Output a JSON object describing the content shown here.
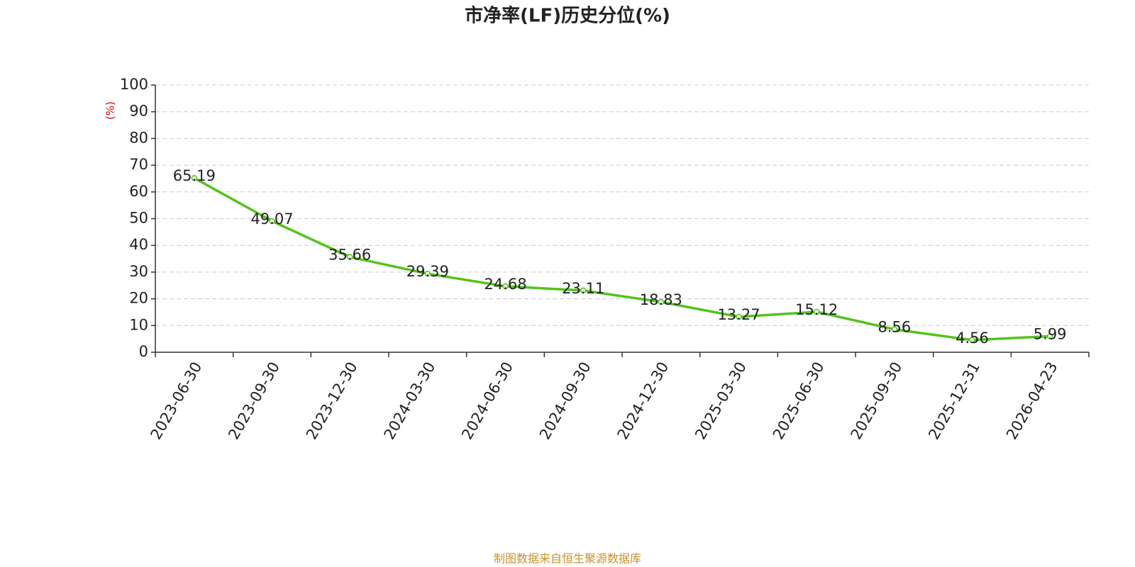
{
  "chart_data": {
    "type": "line",
    "title": "市净率(LF)历史分位(%)",
    "y_label": "(%)",
    "source": "制图数据来自恒生聚源数据库",
    "categories": [
      "2023-06-30",
      "2023-09-30",
      "2023-12-30",
      "2024-03-30",
      "2024-06-30",
      "2024-09-30",
      "2024-12-30",
      "2025-03-30",
      "2025-06-30",
      "2025-09-30",
      "2025-12-31",
      "2026-04-23"
    ],
    "values": [
      65.19,
      49.07,
      35.66,
      29.39,
      24.68,
      23.11,
      18.83,
      13.27,
      15.12,
      8.56,
      4.56,
      5.99
    ],
    "color": "#52c41a",
    "ylim": [
      0,
      100
    ],
    "yticks": [
      0,
      10,
      20,
      30,
      40,
      50,
      60,
      70,
      80,
      90,
      100
    ],
    "grid": true
  }
}
